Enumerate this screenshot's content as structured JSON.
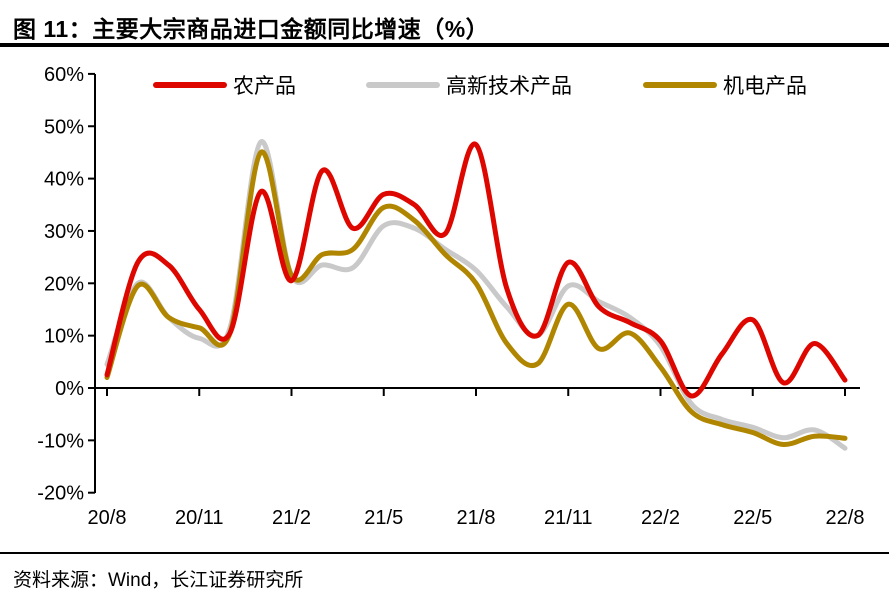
{
  "title": "图  11：主要大宗商品进口金额同比增速（%）",
  "source": "资料来源：Wind，长江证券研究所",
  "colors": {
    "agricultural": "#DD0700",
    "hightech": "#C9C9C9",
    "mechanical": "#B08600",
    "axis": "#000000"
  },
  "chart_data": {
    "type": "line",
    "title": "主要大宗商品进口金额同比增速（%）",
    "x": [
      "20/8",
      "20/9",
      "20/10",
      "20/11",
      "20/12",
      "21/1",
      "21/2",
      "21/3",
      "21/4",
      "21/5",
      "21/6",
      "21/7",
      "21/8",
      "21/9",
      "21/10",
      "21/11",
      "21/12",
      "22/1",
      "22/2",
      "22/3",
      "22/4",
      "22/5",
      "22/6",
      "22/7",
      "22/8"
    ],
    "x_tick_labels": [
      "20/8",
      "20/11",
      "21/2",
      "21/5",
      "21/8",
      "21/11",
      "22/2",
      "22/5",
      "22/8"
    ],
    "y_ticks": [
      60,
      50,
      40,
      30,
      20,
      10,
      0,
      -10,
      -20
    ],
    "y_tick_suffix": "%",
    "ylim": [
      -20,
      60
    ],
    "grid": false,
    "legend_position": "top",
    "smooth": true,
    "series": [
      {
        "name": "农产品",
        "color": "#DD0700",
        "values": [
          2.5,
          24,
          23.5,
          15,
          10.5,
          37.5,
          20.5,
          41.5,
          30.5,
          37,
          35,
          29.5,
          46.5,
          19,
          10,
          24,
          15.5,
          12.5,
          9,
          -1.5,
          6.5,
          13,
          1,
          8.5,
          1.5
        ]
      },
      {
        "name": "高新技术产品",
        "color": "#C9C9C9",
        "values": [
          4.5,
          20,
          13.5,
          9.5,
          11.5,
          47,
          21.5,
          23.5,
          23,
          31,
          30.5,
          26.5,
          22.5,
          15.5,
          10,
          19.5,
          16.5,
          13.5,
          8,
          -3,
          -6,
          -7.5,
          -9.5,
          -8,
          -11.5
        ]
      },
      {
        "name": "机电产品",
        "color": "#B08600",
        "values": [
          2,
          19.5,
          13.5,
          11.5,
          10.5,
          45,
          21.5,
          25.5,
          26.5,
          34.5,
          32,
          25.5,
          20,
          8.5,
          4.6,
          16,
          7.5,
          10.5,
          4,
          -4.5,
          -7,
          -8.5,
          -10.8,
          -9.2,
          -9.6
        ]
      }
    ]
  }
}
